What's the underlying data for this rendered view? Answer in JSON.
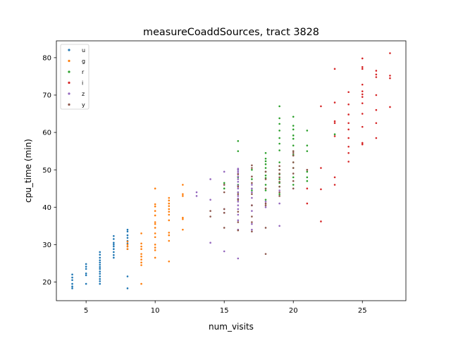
{
  "chart_data": {
    "type": "scatter",
    "title": "measureCoaddSources, tract 3828",
    "xlabel": "num_visits",
    "ylabel": "cpu_time (min)",
    "xlim": [
      2.85,
      28.15
    ],
    "ylim": [
      15.0,
      84.5
    ],
    "xticks": [
      5,
      10,
      15,
      20,
      25
    ],
    "yticks": [
      20,
      30,
      40,
      50,
      60,
      70,
      80
    ],
    "grid": false,
    "legend_position": "top-left",
    "series": [
      {
        "name": "u",
        "color": "#1f77b4",
        "points": [
          [
            4,
            18.3
          ],
          [
            4,
            18.8
          ],
          [
            4,
            19.5
          ],
          [
            4,
            20.5
          ],
          [
            4,
            21.2
          ],
          [
            4,
            22.0
          ],
          [
            5,
            19.5
          ],
          [
            5,
            21.8
          ],
          [
            5,
            22.3
          ],
          [
            5,
            23.5
          ],
          [
            5,
            24.1
          ],
          [
            5,
            24.8
          ],
          [
            6,
            19.5
          ],
          [
            6,
            20.2
          ],
          [
            6,
            20.8
          ],
          [
            6,
            21.5
          ],
          [
            6,
            22.2
          ],
          [
            6,
            22.8
          ],
          [
            6,
            23.5
          ],
          [
            6,
            24.0
          ],
          [
            6,
            24.6
          ],
          [
            6,
            25.2
          ],
          [
            6,
            25.8
          ],
          [
            6,
            26.5
          ],
          [
            6,
            27.3
          ],
          [
            6,
            28.0
          ],
          [
            7,
            26.5
          ],
          [
            7,
            27.2
          ],
          [
            7,
            28.0
          ],
          [
            7,
            28.8
          ],
          [
            7,
            29.5
          ],
          [
            7,
            30.0
          ],
          [
            7,
            30.5
          ],
          [
            7,
            31.5
          ],
          [
            7,
            32.3
          ],
          [
            8,
            18.3
          ],
          [
            8,
            21.5
          ],
          [
            8,
            28.8
          ],
          [
            8,
            29.5
          ],
          [
            8,
            30.3
          ],
          [
            8,
            31.0
          ],
          [
            8,
            31.8
          ],
          [
            8,
            32.5
          ],
          [
            8,
            33.5
          ],
          [
            8,
            34.0
          ]
        ]
      },
      {
        "name": "g",
        "color": "#ff7f0e",
        "points": [
          [
            8,
            28.8
          ],
          [
            8,
            29.5
          ],
          [
            8,
            30.0
          ],
          [
            8,
            30.8
          ],
          [
            9,
            19.5
          ],
          [
            9,
            24.5
          ],
          [
            9,
            25.2
          ],
          [
            9,
            26.0
          ],
          [
            9,
            26.8
          ],
          [
            9,
            27.5
          ],
          [
            9,
            28.8
          ],
          [
            9,
            29.5
          ],
          [
            9,
            30.3
          ],
          [
            9,
            33.0
          ],
          [
            10,
            26.5
          ],
          [
            10,
            28.5
          ],
          [
            10,
            29.2
          ],
          [
            10,
            30.0
          ],
          [
            10,
            32.0
          ],
          [
            10,
            33.0
          ],
          [
            10,
            34.5
          ],
          [
            10,
            35.5
          ],
          [
            10,
            36.0
          ],
          [
            10,
            37.8
          ],
          [
            10,
            39.0
          ],
          [
            10,
            40.2
          ],
          [
            10,
            40.8
          ],
          [
            10,
            45.0
          ],
          [
            11,
            25.5
          ],
          [
            11,
            31.0
          ],
          [
            11,
            32.5
          ],
          [
            11,
            33.2
          ],
          [
            11,
            36.5
          ],
          [
            11,
            38.0
          ],
          [
            11,
            38.8
          ],
          [
            11,
            39.5
          ],
          [
            11,
            40.3
          ],
          [
            11,
            41.0
          ],
          [
            11,
            41.8
          ],
          [
            11,
            42.5
          ],
          [
            12,
            34.0
          ],
          [
            12,
            36.8
          ],
          [
            12,
            37.2
          ],
          [
            12,
            43.0
          ],
          [
            12,
            43.5
          ],
          [
            12,
            46.0
          ]
        ]
      },
      {
        "name": "r",
        "color": "#2ca02c",
        "points": [
          [
            15,
            46.5
          ],
          [
            15,
            45.0
          ],
          [
            16,
            42.0
          ],
          [
            16,
            44.0
          ],
          [
            16,
            46.0
          ],
          [
            16,
            48.0
          ],
          [
            16,
            50.0
          ],
          [
            16,
            55.0
          ],
          [
            16,
            57.7
          ],
          [
            17,
            44.5
          ],
          [
            17,
            47.5
          ],
          [
            17,
            50.0
          ],
          [
            18,
            42.0
          ],
          [
            18,
            44.5
          ],
          [
            18,
            46.0
          ],
          [
            18,
            47.8
          ],
          [
            18,
            48.5
          ],
          [
            18,
            49.5
          ],
          [
            18,
            50.5
          ],
          [
            18,
            51.5
          ],
          [
            18,
            52.3
          ],
          [
            18,
            53.0
          ],
          [
            18,
            54.5
          ],
          [
            19,
            43.5
          ],
          [
            19,
            45.5
          ],
          [
            19,
            46.5
          ],
          [
            19,
            47.5
          ],
          [
            19,
            48.8
          ],
          [
            19,
            50.0
          ],
          [
            19,
            52.0
          ],
          [
            19,
            55.2
          ],
          [
            19,
            57.0
          ],
          [
            19,
            58.5
          ],
          [
            19,
            60.5
          ],
          [
            19,
            62.3
          ],
          [
            19,
            63.8
          ],
          [
            19,
            67.0
          ],
          [
            20,
            46.0
          ],
          [
            20,
            48.0
          ],
          [
            20,
            50.5
          ],
          [
            20,
            52.0
          ],
          [
            20,
            54.0
          ],
          [
            20,
            55.0
          ],
          [
            20,
            56.5
          ],
          [
            20,
            58.3
          ],
          [
            20,
            59.2
          ],
          [
            20,
            60.8
          ],
          [
            20,
            61.8
          ],
          [
            20,
            64.2
          ],
          [
            21,
            47.0
          ],
          [
            21,
            48.0
          ],
          [
            21,
            49.5
          ],
          [
            21,
            55.0
          ],
          [
            21,
            56.5
          ],
          [
            21,
            60.5
          ],
          [
            23,
            59.5
          ]
        ]
      },
      {
        "name": "i",
        "color": "#d62728",
        "points": [
          [
            21,
            41.0
          ],
          [
            21,
            45.0
          ],
          [
            21,
            50.0
          ],
          [
            22,
            36.2
          ],
          [
            22,
            44.8
          ],
          [
            22,
            50.5
          ],
          [
            22,
            67.0
          ],
          [
            23,
            46.0
          ],
          [
            23,
            48.0
          ],
          [
            23,
            59.0
          ],
          [
            23,
            62.5
          ],
          [
            23,
            63.0
          ],
          [
            23,
            68.0
          ],
          [
            23,
            77.0
          ],
          [
            24,
            52.2
          ],
          [
            24,
            54.5
          ],
          [
            24,
            56.2
          ],
          [
            24,
            58.5
          ],
          [
            24,
            60.8
          ],
          [
            24,
            62.5
          ],
          [
            24,
            64.8
          ],
          [
            24,
            67.5
          ],
          [
            24,
            70.8
          ],
          [
            25,
            56.8
          ],
          [
            25,
            57.2
          ],
          [
            25,
            61.5
          ],
          [
            25,
            65.0
          ],
          [
            25,
            67.8
          ],
          [
            25,
            69.5
          ],
          [
            25,
            70.2
          ],
          [
            25,
            71.0
          ],
          [
            25,
            72.8
          ],
          [
            25,
            77.0
          ],
          [
            25,
            77.5
          ],
          [
            25,
            79.8
          ],
          [
            26,
            58.5
          ],
          [
            26,
            62.5
          ],
          [
            26,
            66.0
          ],
          [
            26,
            70.0
          ],
          [
            26,
            74.8
          ],
          [
            26,
            75.5
          ],
          [
            26,
            76.5
          ],
          [
            27,
            66.8
          ],
          [
            27,
            74.5
          ],
          [
            27,
            75.2
          ],
          [
            27,
            81.2
          ]
        ]
      },
      {
        "name": "z",
        "color": "#9467bd",
        "points": [
          [
            13,
            43.0
          ],
          [
            13,
            44.0
          ],
          [
            14,
            30.5
          ],
          [
            14,
            42.0
          ],
          [
            14,
            47.5
          ],
          [
            15,
            28.2
          ],
          [
            15,
            38.5
          ],
          [
            15,
            39.5
          ],
          [
            15,
            46.0
          ],
          [
            15,
            49.5
          ],
          [
            16,
            26.3
          ],
          [
            16,
            34.0
          ],
          [
            16,
            36.5
          ],
          [
            16,
            38.0
          ],
          [
            16,
            39.5
          ],
          [
            16,
            40.5
          ],
          [
            16,
            41.5
          ],
          [
            16,
            42.3
          ],
          [
            16,
            43.0
          ],
          [
            16,
            44.0
          ],
          [
            16,
            45.0
          ],
          [
            16,
            45.8
          ],
          [
            16,
            46.8
          ],
          [
            16,
            47.5
          ],
          [
            16,
            48.2
          ],
          [
            16,
            49.0
          ],
          [
            16,
            49.5
          ],
          [
            16,
            50.0
          ],
          [
            16,
            50.3
          ],
          [
            17,
            34.0
          ],
          [
            17,
            35.5
          ],
          [
            17,
            39.0
          ],
          [
            17,
            40.5
          ],
          [
            17,
            42.5
          ],
          [
            17,
            44.0
          ],
          [
            17,
            45.0
          ],
          [
            17,
            46.0
          ],
          [
            18,
            40.0
          ],
          [
            18,
            41.5
          ],
          [
            19,
            35.0
          ],
          [
            19,
            41.0
          ],
          [
            19,
            44.5
          ]
        ]
      },
      {
        "name": "y",
        "color": "#8c564b",
        "points": [
          [
            14,
            37.5
          ],
          [
            14,
            39.0
          ],
          [
            15,
            34.5
          ],
          [
            15,
            38.5
          ],
          [
            15,
            39.5
          ],
          [
            15,
            44.0
          ],
          [
            15,
            46.0
          ],
          [
            16,
            33.8
          ],
          [
            16,
            36.0
          ],
          [
            16,
            38.8
          ],
          [
            16,
            42.0
          ],
          [
            16,
            43.5
          ],
          [
            16,
            45.5
          ],
          [
            16,
            48.8
          ],
          [
            17,
            33.5
          ],
          [
            17,
            36.0
          ],
          [
            17,
            37.5
          ],
          [
            17,
            40.5
          ],
          [
            17,
            43.5
          ],
          [
            17,
            46.5
          ],
          [
            17,
            48.2
          ],
          [
            17,
            50.5
          ],
          [
            17,
            51.2
          ],
          [
            18,
            27.5
          ],
          [
            18,
            34.5
          ],
          [
            18,
            40.5
          ],
          [
            18,
            41.0
          ],
          [
            18,
            45.0
          ],
          [
            18,
            47.5
          ],
          [
            18,
            49.5
          ],
          [
            19,
            43.0
          ],
          [
            19,
            44.0
          ],
          [
            19,
            45.5
          ],
          [
            19,
            46.8
          ],
          [
            19,
            48.0
          ],
          [
            19,
            49.0
          ],
          [
            19,
            50.0
          ],
          [
            19,
            51.0
          ],
          [
            20,
            45.0
          ],
          [
            20,
            47.0
          ],
          [
            20,
            49.0
          ],
          [
            20,
            50.5
          ],
          [
            20,
            52.0
          ],
          [
            20,
            53.8
          ],
          [
            20,
            54.5
          ],
          [
            20,
            55.0
          ],
          [
            21,
            50.0
          ]
        ]
      }
    ]
  }
}
